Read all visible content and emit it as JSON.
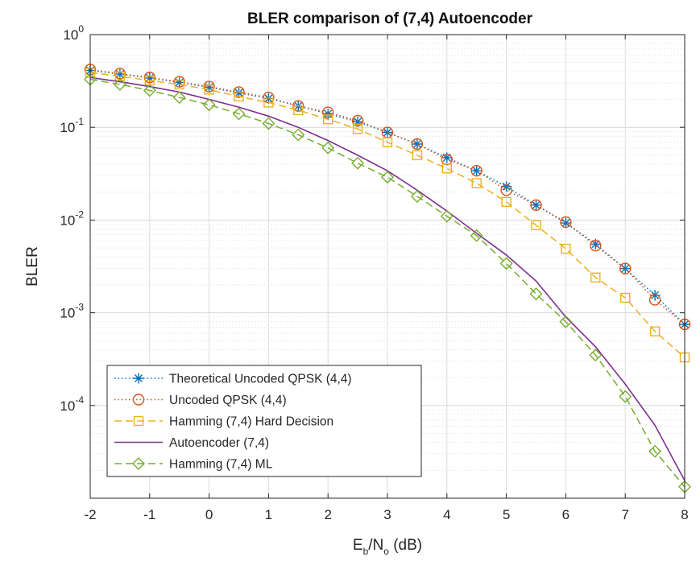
{
  "chart_data": {
    "type": "line",
    "title": "BLER comparison of (7,4) Autoencoder",
    "xlabel": "E_b/N_o (dB)",
    "xlabel_parts": {
      "base1": "E",
      "sub1": "b",
      "slash": "/N",
      "sub2": "o",
      "rest": " (dB)"
    },
    "ylabel": "BLER",
    "xlim": [
      -2,
      8
    ],
    "ylim": [
      1e-05,
      1
    ],
    "yscale": "log",
    "grid": true,
    "legend_position": "bottom-left",
    "x_ticks": [
      "-2",
      "-1",
      "0",
      "1",
      "2",
      "3",
      "4",
      "5",
      "6",
      "7",
      "8"
    ],
    "y_ticks": [
      {
        "base": "10",
        "exp": "0"
      },
      {
        "base": "10",
        "exp": "-1"
      },
      {
        "base": "10",
        "exp": "-2"
      },
      {
        "base": "10",
        "exp": "-3"
      },
      {
        "base": "10",
        "exp": "-4"
      }
    ],
    "x": [
      -2,
      -1.5,
      -1,
      -0.5,
      0,
      0.5,
      1,
      1.5,
      2,
      2.5,
      3,
      3.5,
      4,
      4.5,
      5,
      5.5,
      6,
      6.5,
      7,
      7.5,
      8
    ],
    "series": [
      {
        "name": "Theoretical Uncoded QPSK (4,4)",
        "color": "#0072BD",
        "line": "dotted",
        "marker": "asterisk",
        "values": [
          0.41,
          0.375,
          0.34,
          0.305,
          0.27,
          0.235,
          0.205,
          0.17,
          0.14,
          0.115,
          0.088,
          0.066,
          0.047,
          0.034,
          0.023,
          0.0145,
          0.0093,
          0.0055,
          0.003,
          0.00155,
          0.00075
        ]
      },
      {
        "name": "Uncoded QPSK (4,4)",
        "color": "#D95319",
        "line": "dotted",
        "marker": "circle",
        "values": [
          0.42,
          0.38,
          0.345,
          0.31,
          0.275,
          0.24,
          0.21,
          0.17,
          0.145,
          0.118,
          0.088,
          0.066,
          0.045,
          0.034,
          0.021,
          0.0145,
          0.0095,
          0.0053,
          0.003,
          0.00138,
          0.00075
        ]
      },
      {
        "name": "Hamming (7,4) Hard Decision",
        "color": "#EDB120",
        "line": "dashed",
        "marker": "square",
        "values": [
          0.39,
          0.355,
          0.32,
          0.29,
          0.255,
          0.215,
          0.185,
          0.153,
          0.122,
          0.096,
          0.069,
          0.05,
          0.036,
          0.025,
          0.0157,
          0.0088,
          0.0049,
          0.0024,
          0.00145,
          0.00063,
          0.00033
        ]
      },
      {
        "name": "Autoencoder (7,4)",
        "color": "#7E2F8E",
        "line": "solid",
        "marker": "none",
        "values": [
          0.345,
          0.31,
          0.275,
          0.24,
          0.2,
          0.165,
          0.132,
          0.1,
          0.072,
          0.05,
          0.034,
          0.021,
          0.0125,
          0.0072,
          0.0042,
          0.0022,
          0.0009,
          0.00043,
          0.00017,
          6.12e-05,
          1.55e-05
        ]
      },
      {
        "name": "Hamming (7,4) ML",
        "color": "#77AC30",
        "line": "dashed",
        "marker": "diamond",
        "values": [
          0.33,
          0.29,
          0.25,
          0.21,
          0.175,
          0.14,
          0.11,
          0.083,
          0.06,
          0.041,
          0.029,
          0.018,
          0.011,
          0.0068,
          0.0034,
          0.0016,
          0.0008,
          0.00035,
          0.000125,
          3.2e-05,
          1.33e-05
        ]
      }
    ]
  }
}
